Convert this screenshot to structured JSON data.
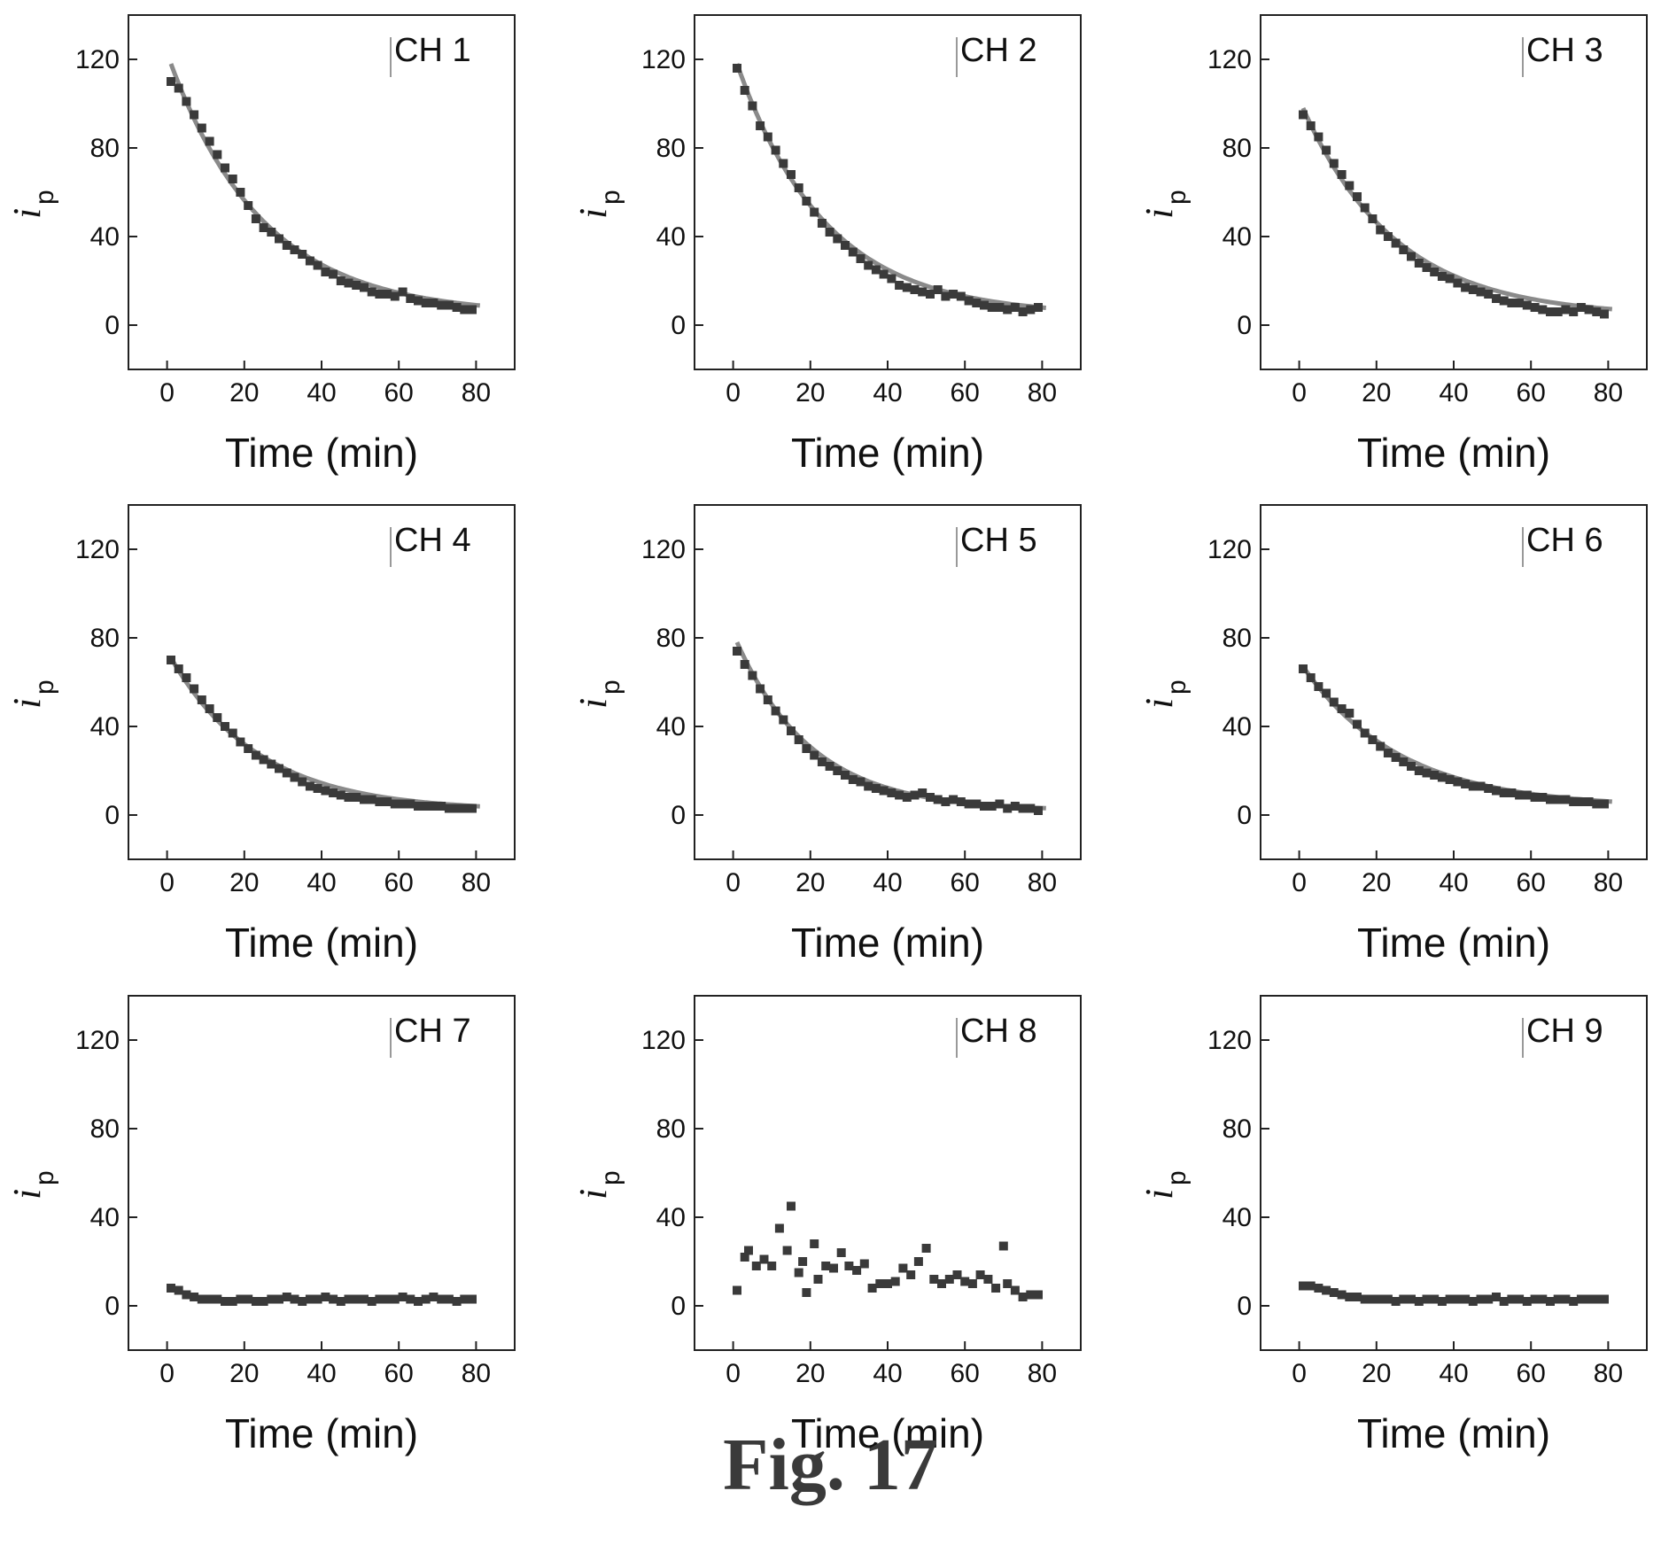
{
  "figure_caption": "Fig. 17",
  "chart_data": [
    {
      "type": "scatter",
      "title": "CH 1",
      "xlabel": "Time (min)",
      "ylabel": "i",
      "ylabel_sub": "p",
      "xlim": [
        -10,
        90
      ],
      "ylim": [
        -20,
        140
      ],
      "xticks": [
        0,
        20,
        40,
        60,
        80
      ],
      "yticks": [
        0,
        40,
        80,
        120
      ],
      "grid": false,
      "series": [
        {
          "x": [
            1,
            3,
            5,
            7,
            9,
            11,
            13,
            15,
            17,
            19,
            21,
            23,
            25,
            27,
            29,
            31,
            33,
            35,
            37,
            39,
            41,
            43,
            45,
            47,
            49,
            51,
            53,
            55,
            57,
            59,
            61,
            63,
            65,
            67,
            69,
            71,
            73,
            75,
            77,
            79
          ],
          "y": [
            110,
            107,
            101,
            95,
            89,
            83,
            77,
            71,
            66,
            60,
            54,
            48,
            44,
            42,
            39,
            36,
            34,
            32,
            29,
            27,
            24,
            23,
            20,
            19,
            18,
            17,
            15,
            14,
            14,
            13,
            15,
            12,
            11,
            10,
            10,
            9,
            9,
            8,
            7,
            7
          ]
        },
        {
          "fit": true,
          "y0": 118,
          "x_end": 80
        }
      ]
    },
    {
      "type": "scatter",
      "title": "CH 2",
      "xlabel": "Time (min)",
      "ylabel": "i",
      "ylabel_sub": "p",
      "xlim": [
        -10,
        90
      ],
      "ylim": [
        -20,
        140
      ],
      "xticks": [
        0,
        20,
        40,
        60,
        80
      ],
      "yticks": [
        0,
        40,
        80,
        120
      ],
      "grid": false,
      "series": [
        {
          "x": [
            1,
            3,
            5,
            7,
            9,
            11,
            13,
            15,
            17,
            19,
            21,
            23,
            25,
            27,
            29,
            31,
            33,
            35,
            37,
            39,
            41,
            43,
            45,
            47,
            49,
            51,
            53,
            55,
            57,
            59,
            61,
            63,
            65,
            67,
            69,
            71,
            73,
            75,
            77,
            79
          ],
          "y": [
            116,
            106,
            99,
            90,
            85,
            79,
            73,
            68,
            62,
            56,
            51,
            46,
            42,
            39,
            36,
            33,
            30,
            27,
            25,
            23,
            21,
            18,
            17,
            16,
            15,
            14,
            16,
            13,
            14,
            13,
            11,
            10,
            9,
            8,
            8,
            7,
            8,
            6,
            7,
            8
          ]
        },
        {
          "fit": true,
          "y0": 118,
          "x_end": 80
        }
      ]
    },
    {
      "type": "scatter",
      "title": "CH 3",
      "xlabel": "Time (min)",
      "ylabel": "i",
      "ylabel_sub": "p",
      "xlim": [
        -10,
        90
      ],
      "ylim": [
        -20,
        140
      ],
      "xticks": [
        0,
        20,
        40,
        60,
        80
      ],
      "yticks": [
        0,
        40,
        80,
        120
      ],
      "grid": false,
      "series": [
        {
          "x": [
            1,
            3,
            5,
            7,
            9,
            11,
            13,
            15,
            17,
            19,
            21,
            23,
            25,
            27,
            29,
            31,
            33,
            35,
            37,
            39,
            41,
            43,
            45,
            47,
            49,
            51,
            53,
            55,
            57,
            59,
            61,
            63,
            65,
            67,
            69,
            71,
            73,
            75,
            77,
            79
          ],
          "y": [
            95,
            90,
            85,
            79,
            73,
            68,
            63,
            58,
            53,
            48,
            43,
            40,
            37,
            34,
            31,
            28,
            26,
            24,
            22,
            21,
            19,
            17,
            16,
            15,
            14,
            12,
            11,
            10,
            10,
            9,
            8,
            7,
            6,
            6,
            7,
            6,
            8,
            7,
            6,
            5
          ]
        },
        {
          "fit": true,
          "y0": 98,
          "x_end": 80
        }
      ]
    },
    {
      "type": "scatter",
      "title": "CH 4",
      "xlabel": "Time (min)",
      "ylabel": "i",
      "ylabel_sub": "p",
      "xlim": [
        -10,
        90
      ],
      "ylim": [
        -20,
        140
      ],
      "xticks": [
        0,
        20,
        40,
        60,
        80
      ],
      "yticks": [
        0,
        40,
        80,
        120
      ],
      "grid": false,
      "series": [
        {
          "x": [
            1,
            3,
            5,
            7,
            9,
            11,
            13,
            15,
            17,
            19,
            21,
            23,
            25,
            27,
            29,
            31,
            33,
            35,
            37,
            39,
            41,
            43,
            45,
            47,
            49,
            51,
            53,
            55,
            57,
            59,
            61,
            63,
            65,
            67,
            69,
            71,
            73,
            75,
            77,
            79
          ],
          "y": [
            70,
            66,
            62,
            57,
            52,
            48,
            44,
            40,
            37,
            33,
            30,
            27,
            25,
            23,
            21,
            19,
            17,
            15,
            13,
            12,
            11,
            10,
            9,
            8,
            8,
            7,
            7,
            6,
            6,
            5,
            5,
            5,
            4,
            4,
            4,
            4,
            3,
            3,
            3,
            3
          ]
        },
        {
          "fit": true,
          "y0": 71,
          "x_end": 80
        }
      ]
    },
    {
      "type": "scatter",
      "title": "CH 5",
      "xlabel": "Time (min)",
      "ylabel": "i",
      "ylabel_sub": "p",
      "xlim": [
        -10,
        90
      ],
      "ylim": [
        -20,
        140
      ],
      "xticks": [
        0,
        20,
        40,
        60,
        80
      ],
      "yticks": [
        0,
        40,
        80,
        120
      ],
      "grid": false,
      "series": [
        {
          "x": [
            1,
            3,
            5,
            7,
            9,
            11,
            13,
            15,
            17,
            19,
            21,
            23,
            25,
            27,
            29,
            31,
            33,
            35,
            37,
            39,
            41,
            43,
            45,
            47,
            49,
            51,
            53,
            55,
            57,
            59,
            61,
            63,
            65,
            67,
            69,
            71,
            73,
            75,
            77,
            79
          ],
          "y": [
            74,
            68,
            63,
            57,
            52,
            47,
            43,
            38,
            34,
            30,
            27,
            24,
            22,
            20,
            18,
            16,
            15,
            13,
            12,
            11,
            10,
            9,
            8,
            9,
            10,
            8,
            7,
            6,
            7,
            6,
            5,
            5,
            4,
            4,
            5,
            3,
            4,
            3,
            3,
            2
          ]
        },
        {
          "fit": true,
          "y0": 78,
          "x_end": 80
        }
      ]
    },
    {
      "type": "scatter",
      "title": "CH 6",
      "xlabel": "Time (min)",
      "ylabel": "i",
      "ylabel_sub": "p",
      "xlim": [
        -10,
        90
      ],
      "ylim": [
        -20,
        140
      ],
      "xticks": [
        0,
        20,
        40,
        60,
        80
      ],
      "yticks": [
        0,
        40,
        80,
        120
      ],
      "grid": false,
      "series": [
        {
          "x": [
            1,
            3,
            5,
            7,
            9,
            11,
            13,
            15,
            17,
            19,
            21,
            23,
            25,
            27,
            29,
            31,
            33,
            35,
            37,
            39,
            41,
            43,
            45,
            47,
            49,
            51,
            53,
            55,
            57,
            59,
            61,
            63,
            65,
            67,
            69,
            71,
            73,
            75,
            77,
            79
          ],
          "y": [
            66,
            62,
            58,
            55,
            51,
            48,
            46,
            41,
            37,
            34,
            31,
            28,
            26,
            24,
            22,
            20,
            19,
            18,
            17,
            16,
            15,
            14,
            13,
            13,
            12,
            11,
            10,
            10,
            9,
            9,
            8,
            8,
            7,
            7,
            7,
            6,
            6,
            6,
            5,
            5
          ]
        },
        {
          "fit": true,
          "y0": 67,
          "x_end": 80
        }
      ]
    },
    {
      "type": "scatter",
      "title": "CH 7",
      "xlabel": "Time (min)",
      "ylabel": "i",
      "ylabel_sub": "p",
      "xlim": [
        -10,
        90
      ],
      "ylim": [
        -20,
        140
      ],
      "xticks": [
        0,
        20,
        40,
        60,
        80
      ],
      "yticks": [
        0,
        40,
        80,
        120
      ],
      "grid": false,
      "series": [
        {
          "x": [
            1,
            3,
            5,
            7,
            9,
            11,
            13,
            15,
            17,
            19,
            21,
            23,
            25,
            27,
            29,
            31,
            33,
            35,
            37,
            39,
            41,
            43,
            45,
            47,
            49,
            51,
            53,
            55,
            57,
            59,
            61,
            63,
            65,
            67,
            69,
            71,
            73,
            75,
            77,
            79
          ],
          "y": [
            8,
            7,
            5,
            4,
            3,
            3,
            3,
            2,
            2,
            3,
            3,
            2,
            2,
            3,
            3,
            4,
            3,
            2,
            3,
            3,
            4,
            3,
            2,
            3,
            3,
            3,
            2,
            3,
            3,
            3,
            4,
            3,
            2,
            3,
            4,
            3,
            3,
            2,
            3,
            3
          ]
        }
      ]
    },
    {
      "type": "scatter",
      "title": "CH 8",
      "xlabel": "Time (min)",
      "ylabel": "i",
      "ylabel_sub": "p",
      "xlim": [
        -10,
        90
      ],
      "ylim": [
        -20,
        140
      ],
      "xticks": [
        0,
        20,
        40,
        60,
        80
      ],
      "yticks": [
        0,
        40,
        80,
        120
      ],
      "grid": false,
      "series": [
        {
          "x": [
            1,
            3,
            4,
            6,
            8,
            10,
            12,
            14,
            15,
            17,
            18,
            19,
            21,
            22,
            24,
            26,
            28,
            30,
            32,
            34,
            36,
            38,
            40,
            42,
            44,
            46,
            48,
            50,
            52,
            54,
            56,
            58,
            60,
            62,
            64,
            66,
            68,
            70,
            71,
            73,
            75,
            77,
            79
          ],
          "y": [
            7,
            22,
            25,
            18,
            21,
            18,
            35,
            25,
            45,
            15,
            20,
            6,
            28,
            12,
            18,
            17,
            24,
            18,
            16,
            19,
            8,
            10,
            10,
            11,
            17,
            14,
            20,
            26,
            12,
            10,
            12,
            14,
            11,
            10,
            14,
            12,
            8,
            27,
            10,
            7,
            4,
            5,
            5
          ]
        }
      ]
    },
    {
      "type": "scatter",
      "title": "CH 9",
      "xlabel": "Time (min)",
      "ylabel": "i",
      "ylabel_sub": "p",
      "xlim": [
        -10,
        90
      ],
      "ylim": [
        -20,
        140
      ],
      "xticks": [
        0,
        20,
        40,
        60,
        80
      ],
      "yticks": [
        0,
        40,
        80,
        120
      ],
      "grid": false,
      "series": [
        {
          "x": [
            1,
            3,
            5,
            7,
            9,
            11,
            13,
            15,
            17,
            19,
            21,
            23,
            25,
            27,
            29,
            31,
            33,
            35,
            37,
            39,
            41,
            43,
            45,
            47,
            49,
            51,
            53,
            55,
            57,
            59,
            61,
            63,
            65,
            67,
            69,
            71,
            73,
            75,
            77,
            79
          ],
          "y": [
            9,
            9,
            8,
            7,
            6,
            5,
            4,
            4,
            3,
            3,
            3,
            3,
            2,
            3,
            3,
            2,
            3,
            3,
            2,
            3,
            3,
            3,
            2,
            3,
            3,
            4,
            2,
            3,
            3,
            2,
            3,
            3,
            2,
            3,
            3,
            2,
            3,
            3,
            3,
            3
          ]
        }
      ]
    }
  ],
  "colors": {
    "marker": "#3a3a3a",
    "fit_line": "#8a8a8a",
    "axis": "#222222"
  }
}
